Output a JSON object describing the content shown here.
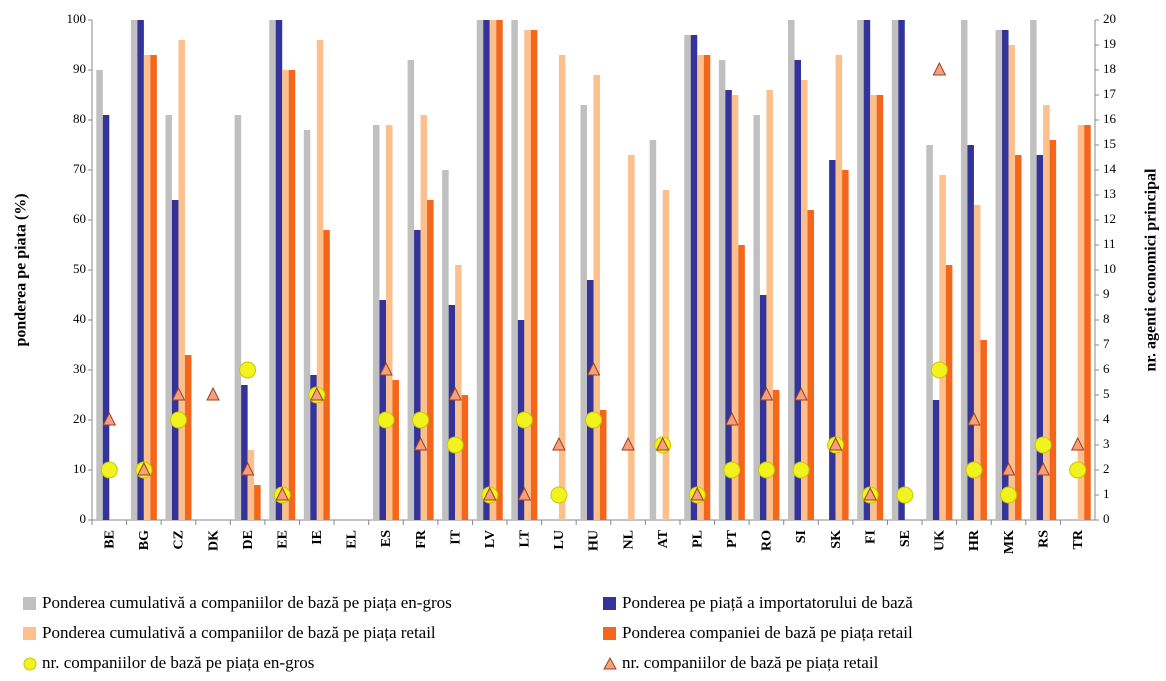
{
  "chart_data": {
    "type": "bar",
    "y_label": "ponderea pe piata (%)",
    "y2_label": "nr. agenti economici principal",
    "categories": [
      "BE",
      "BG",
      "CZ",
      "DK",
      "DE",
      "EE",
      "IE",
      "EL",
      "ES",
      "FR",
      "IT",
      "LV",
      "LT",
      "LU",
      "HU",
      "NL",
      "AT",
      "PL",
      "PT",
      "RO",
      "SI",
      "SK",
      "FI",
      "SE",
      "UK",
      "HR",
      "MK",
      "RS",
      "TR"
    ],
    "ylim": [
      0,
      100
    ],
    "yticks": [
      0,
      10,
      20,
      30,
      40,
      50,
      60,
      70,
      80,
      90,
      100
    ],
    "y2lim": [
      0,
      20
    ],
    "y2ticks": [
      0,
      1,
      2,
      3,
      4,
      5,
      6,
      7,
      8,
      9,
      10,
      11,
      12,
      13,
      14,
      15,
      16,
      17,
      18,
      19,
      20
    ],
    "series": [
      {
        "name": "Ponderea cumulativă a companiilor de bază pe piața en-gros",
        "type": "bar",
        "color": "#c0c0c0",
        "values": [
          90,
          100,
          81,
          null,
          81,
          100,
          78,
          null,
          79,
          92,
          70,
          100,
          100,
          null,
          83,
          null,
          76,
          97,
          92,
          81,
          100,
          null,
          100,
          100,
          75,
          100,
          98,
          100,
          null
        ]
      },
      {
        "name": "Ponderea pe piață a importatorului de bază",
        "type": "bar",
        "color": "#33339a",
        "values": [
          81,
          100,
          64,
          null,
          27,
          100,
          29,
          null,
          44,
          58,
          43,
          100,
          40,
          null,
          48,
          null,
          null,
          97,
          86,
          45,
          92,
          72,
          100,
          100,
          24,
          75,
          98,
          73,
          null
        ]
      },
      {
        "name": "Ponderea cumulativă a companiilor de bază pe piața retail",
        "type": "bar",
        "color": "#fbc08c",
        "values": [
          null,
          93,
          96,
          null,
          14,
          90,
          96,
          null,
          79,
          81,
          51,
          100,
          98,
          93,
          89,
          73,
          66,
          93,
          85,
          86,
          88,
          93,
          85,
          null,
          69,
          63,
          95,
          83,
          79
        ]
      },
      {
        "name": "Ponderea companiei de bază pe piața retail",
        "type": "bar",
        "color": "#f4661c",
        "values": [
          null,
          93,
          33,
          null,
          7,
          90,
          58,
          null,
          28,
          64,
          25,
          100,
          98,
          null,
          22,
          null,
          null,
          93,
          55,
          26,
          62,
          70,
          85,
          null,
          51,
          36,
          73,
          76,
          79
        ]
      },
      {
        "name": "nr. companiilor de bază pe piața en-gros",
        "type": "circle",
        "axis": "y2",
        "color": "#f2f21e",
        "values": [
          2,
          2,
          4,
          null,
          6,
          1,
          5,
          null,
          4,
          4,
          3,
          1,
          4,
          1,
          4,
          null,
          3,
          1,
          2,
          2,
          2,
          3,
          1,
          1,
          6,
          2,
          1,
          3,
          2
        ]
      },
      {
        "name": "nr. companiilor de bază pe piața retail",
        "type": "triangle",
        "axis": "y2",
        "color": "#f4a07c",
        "values": [
          4,
          2,
          5,
          5,
          2,
          1,
          5,
          null,
          6,
          3,
          5,
          1,
          1,
          3,
          6,
          3,
          3,
          1,
          4,
          5,
          5,
          3,
          1,
          null,
          18,
          4,
          2,
          2,
          3
        ]
      }
    ]
  }
}
